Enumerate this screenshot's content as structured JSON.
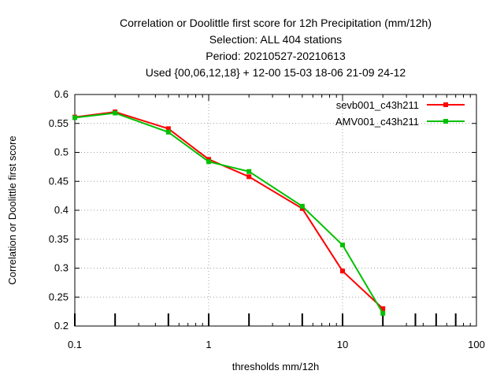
{
  "title_lines": [
    "Correlation or Doolittle first score  for 12h Precipitation (mm/12h)",
    "Selection: ALL    404 stations",
    "Period: 20210527-20210613",
    "Used {00,06,12,18} + 12-00 15-03 18-06 21-09 24-12"
  ],
  "chart_data": {
    "type": "line",
    "xlabel": "thresholds mm/12h",
    "ylabel": "Correlation or Doolittle first score",
    "xscale": "log",
    "xlim": [
      0.1,
      100
    ],
    "ylim": [
      0.2,
      0.6
    ],
    "xticks": [
      {
        "value": 0.1,
        "label": "0.1"
      },
      {
        "value": 1,
        "label": "1"
      },
      {
        "value": 10,
        "label": "10"
      },
      {
        "value": 100,
        "label": "100"
      }
    ],
    "yticks": [
      {
        "value": 0.2,
        "label": "0.2"
      },
      {
        "value": 0.25,
        "label": "0.25"
      },
      {
        "value": 0.3,
        "label": "0.3"
      },
      {
        "value": 0.35,
        "label": "0.35"
      },
      {
        "value": 0.4,
        "label": "0.4"
      },
      {
        "value": 0.45,
        "label": "0.45"
      },
      {
        "value": 0.5,
        "label": "0.5"
      },
      {
        "value": 0.55,
        "label": "0.55"
      },
      {
        "value": 0.6,
        "label": "0.6"
      }
    ],
    "threshold_marks": [
      0.1,
      0.2,
      0.5,
      1,
      2,
      5,
      10,
      20,
      35,
      50,
      70
    ],
    "grid": true,
    "legend_position": "top-right",
    "series": [
      {
        "name": "sevb001_c43h211",
        "color": "#ff0000",
        "x": [
          0.1,
          0.2,
          0.5,
          1,
          2,
          5,
          10,
          20
        ],
        "y": [
          0.561,
          0.57,
          0.541,
          0.488,
          0.458,
          0.403,
          0.295,
          0.23
        ]
      },
      {
        "name": "AMV001_c43h211",
        "color": "#00c000",
        "x": [
          0.1,
          0.2,
          0.5,
          1,
          2,
          5,
          10,
          20
        ],
        "y": [
          0.56,
          0.568,
          0.535,
          0.484,
          0.467,
          0.407,
          0.34,
          0.222
        ]
      }
    ]
  }
}
